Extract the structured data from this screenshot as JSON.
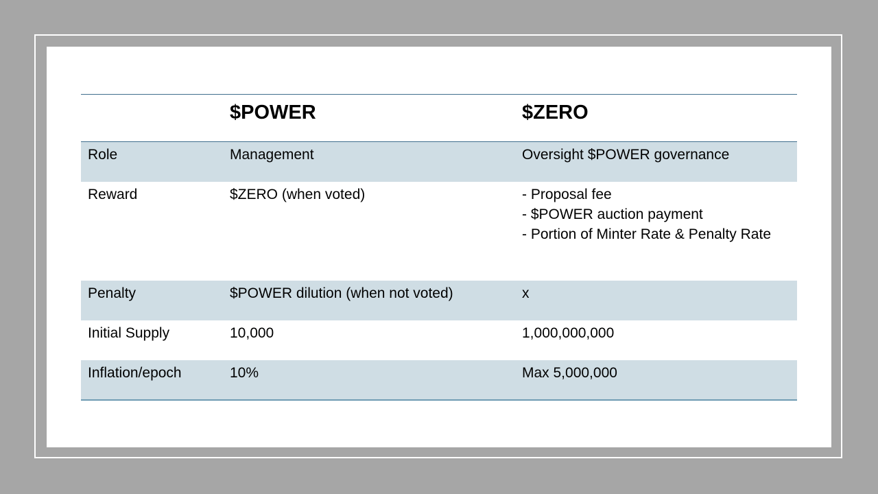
{
  "table": {
    "headers": [
      "",
      "$POWER",
      "$ZERO"
    ],
    "rows": {
      "role": {
        "label": "Role",
        "power": "Management",
        "zero": "Oversight $POWER governance"
      },
      "reward": {
        "label": "Reward",
        "power": "$ZERO (when voted)",
        "zero_lines": [
          "- Proposal fee",
          "- $POWER auction payment",
          "- Portion of Minter Rate & Penalty Rate"
        ]
      },
      "penalty": {
        "label": "Penalty",
        "power": "$POWER dilution (when not voted)",
        "zero": "x"
      },
      "initial_supply": {
        "label": "Initial Supply",
        "power": "10,000",
        "zero": "1,000,000,000"
      },
      "inflation": {
        "label": "Inflation/epoch",
        "power": "10%",
        "zero": "Max 5,000,000"
      }
    }
  },
  "colors": {
    "background": "#a6a6a6",
    "slide": "#ffffff",
    "row_shade": "#cfdde4",
    "rule": "#3f6d8c"
  }
}
